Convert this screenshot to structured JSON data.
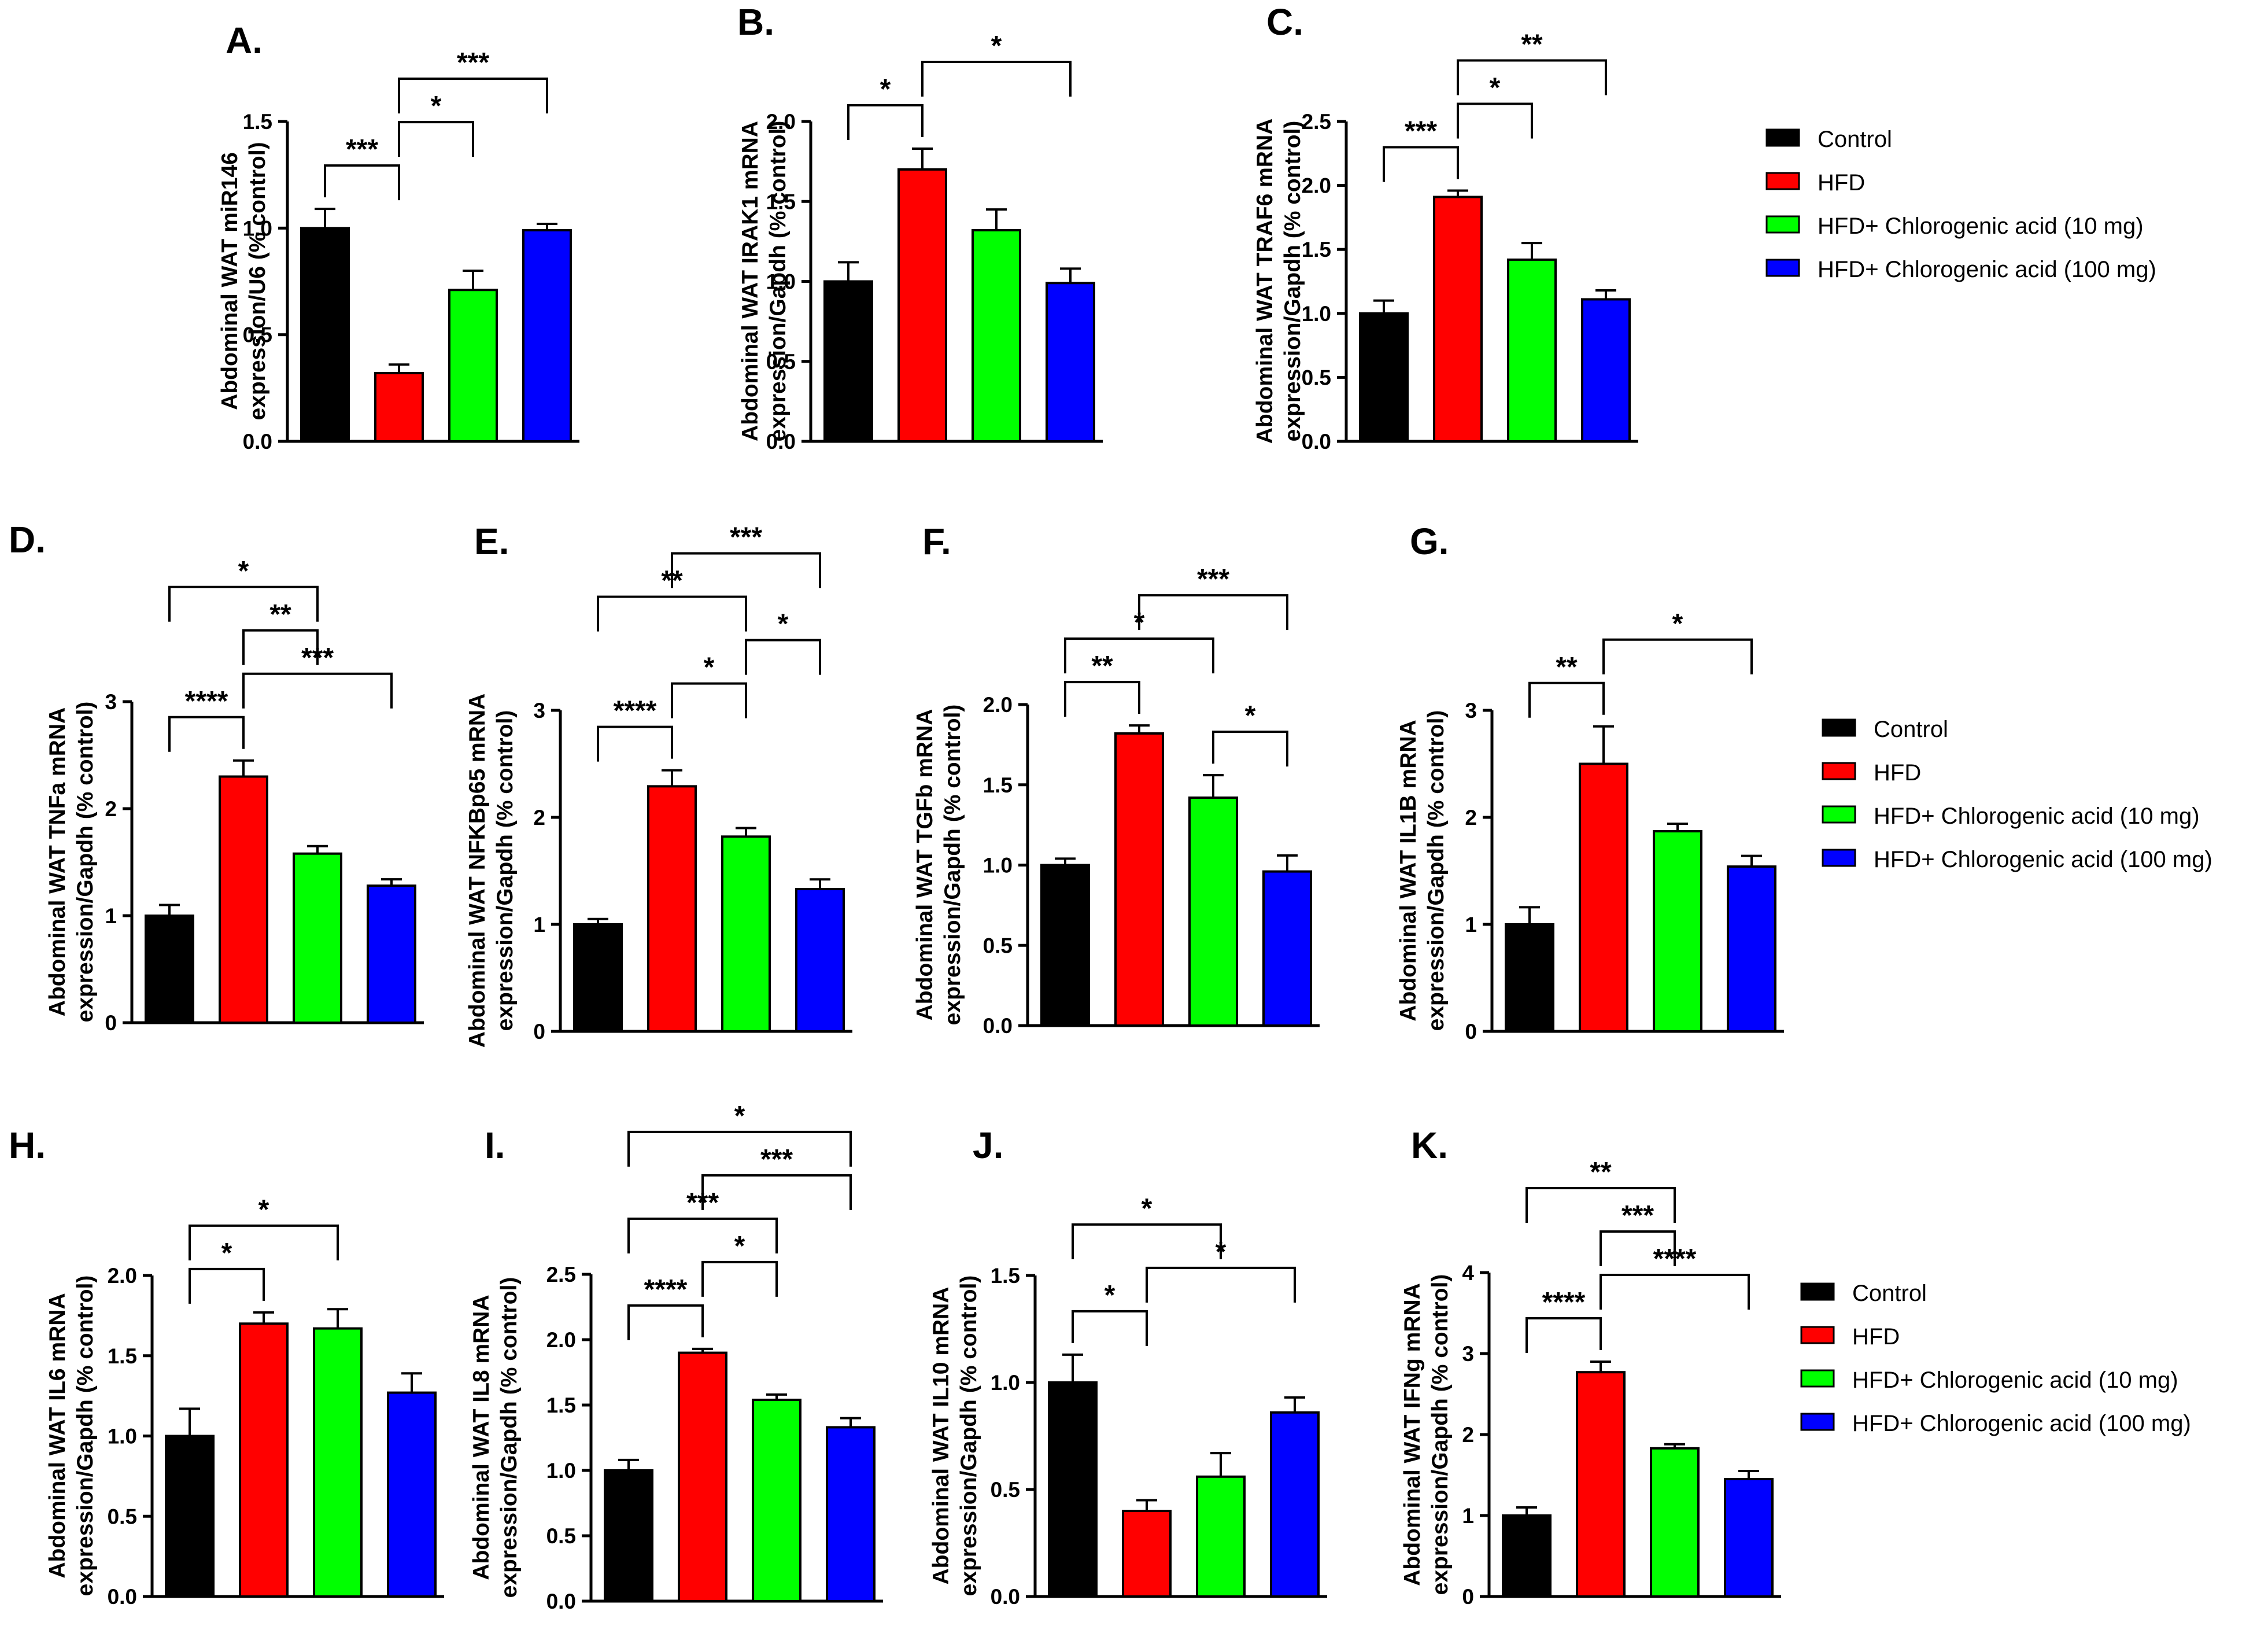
{
  "groups": [
    {
      "key": "control",
      "name": "Control",
      "color": "#000000"
    },
    {
      "key": "hfd",
      "name": "HFD",
      "color": "#ff0000"
    },
    {
      "key": "cga10",
      "name": "HFD+ Chlorogenic acid (10 mg)",
      "color": "#00ff00"
    },
    {
      "key": "cga100",
      "name": "HFD+ Chlorogenic acid (100 mg)",
      "color": "#0000ff"
    }
  ],
  "legend_copies": 3,
  "chart_data": [
    {
      "panel": "A.",
      "type": "bar",
      "title": "",
      "ylabel": [
        "Abdominal WAT miR146",
        "expression/U6 (% control)"
      ],
      "ylim": [
        0,
        1.5
      ],
      "ticks": [
        0.0,
        0.5,
        1.0,
        1.5
      ],
      "tick_labels": [
        "0.0",
        "0.5",
        "1.0",
        "1.5"
      ],
      "categories": [
        "Control",
        "HFD",
        "HFD+ Chlorogenic acid (10 mg)",
        "HFD+ Chlorogenic acid (100 mg)"
      ],
      "values": [
        1.0,
        0.32,
        0.71,
        0.99
      ],
      "errors": [
        0.09,
        0.04,
        0.09,
        0.03
      ],
      "significance": [
        {
          "from": 0,
          "to": 1,
          "label": "***"
        },
        {
          "from": 1,
          "to": 2,
          "label": "*"
        },
        {
          "from": 1,
          "to": 3,
          "label": "***"
        }
      ]
    },
    {
      "panel": "B.",
      "type": "bar",
      "title": "",
      "ylabel": [
        "Abdominal WAT IRAK1 mRNA",
        "expression/Gapdh (% control)"
      ],
      "ylim": [
        0,
        2.0
      ],
      "ticks": [
        0.0,
        0.5,
        1.0,
        1.5,
        2.0
      ],
      "tick_labels": [
        "0.0",
        "0.5",
        "1.0",
        "1.5",
        "2.0"
      ],
      "categories": [
        "Control",
        "HFD",
        "HFD+ Chlorogenic acid (10 mg)",
        "HFD+ Chlorogenic acid (100 mg)"
      ],
      "values": [
        1.0,
        1.7,
        1.32,
        0.99
      ],
      "errors": [
        0.12,
        0.13,
        0.13,
        0.09
      ],
      "significance": [
        {
          "from": 0,
          "to": 1,
          "label": "*"
        },
        {
          "from": 1,
          "to": 3,
          "label": "*"
        }
      ]
    },
    {
      "panel": "C.",
      "type": "bar",
      "title": "",
      "ylabel": [
        "Abdominal WAT TRAF6 mRNA",
        "expression/Gapdh (% control)"
      ],
      "ylim": [
        0,
        2.5
      ],
      "ticks": [
        0.0,
        0.5,
        1.0,
        1.5,
        2.0,
        2.5
      ],
      "tick_labels": [
        "0.0",
        "0.5",
        "1.0",
        "1.5",
        "2.0",
        "2.5"
      ],
      "categories": [
        "Control",
        "HFD",
        "HFD+ Chlorogenic acid (10 mg)",
        "HFD+ Chlorogenic acid (100 mg)"
      ],
      "values": [
        1.0,
        1.91,
        1.42,
        1.11
      ],
      "errors": [
        0.1,
        0.05,
        0.13,
        0.07
      ],
      "significance": [
        {
          "from": 0,
          "to": 1,
          "label": "***"
        },
        {
          "from": 1,
          "to": 2,
          "label": "*"
        },
        {
          "from": 1,
          "to": 3,
          "label": "**"
        }
      ]
    },
    {
      "panel": "D.",
      "type": "bar",
      "title": "",
      "ylabel": [
        "Abdominal WAT TNFa mRNA",
        "expression/Gapdh (% control)"
      ],
      "ylim": [
        0,
        3
      ],
      "ticks": [
        0,
        1,
        2,
        3
      ],
      "tick_labels": [
        "0",
        "1",
        "2",
        "3"
      ],
      "categories": [
        "Control",
        "HFD",
        "HFD+ Chlorogenic acid (10 mg)",
        "HFD+ Chlorogenic acid (100 mg)"
      ],
      "values": [
        1.0,
        2.3,
        1.58,
        1.28
      ],
      "errors": [
        0.1,
        0.15,
        0.07,
        0.06
      ],
      "significance": [
        {
          "from": 0,
          "to": 1,
          "label": "****"
        },
        {
          "from": 1,
          "to": 3,
          "label": "***"
        },
        {
          "from": 1,
          "to": 2,
          "label": "**"
        },
        {
          "from": 0,
          "to": 2,
          "label": "*"
        }
      ]
    },
    {
      "panel": "E.",
      "type": "bar",
      "title": "",
      "ylabel": [
        "Abdominal WAT NFKBp65 mRNA",
        "expression/Gapdh (% control)"
      ],
      "ylim": [
        0,
        3
      ],
      "ticks": [
        0,
        1,
        2,
        3
      ],
      "tick_labels": [
        "0",
        "1",
        "2",
        "3"
      ],
      "categories": [
        "Control",
        "HFD",
        "HFD+ Chlorogenic acid (10 mg)",
        "HFD+ Chlorogenic acid (100 mg)"
      ],
      "values": [
        1.0,
        2.29,
        1.82,
        1.33
      ],
      "errors": [
        0.05,
        0.15,
        0.08,
        0.09
      ],
      "significance": [
        {
          "from": 0,
          "to": 1,
          "label": "****"
        },
        {
          "from": 1,
          "to": 2,
          "label": "*"
        },
        {
          "from": 2,
          "to": 3,
          "label": "*"
        },
        {
          "from": 0,
          "to": 2,
          "label": "**"
        },
        {
          "from": 1,
          "to": 3,
          "label": "***"
        }
      ]
    },
    {
      "panel": "F.",
      "type": "bar",
      "title": "",
      "ylabel": [
        "Abdominal WAT TGFb mRNA",
        "expression/Gapdh (% control)"
      ],
      "ylim": [
        0,
        2.0
      ],
      "ticks": [
        0.0,
        0.5,
        1.0,
        1.5,
        2.0
      ],
      "tick_labels": [
        "0.0",
        "0.5",
        "1.0",
        "1.5",
        "2.0"
      ],
      "categories": [
        "Control",
        "HFD",
        "HFD+ Chlorogenic acid (10 mg)",
        "HFD+ Chlorogenic acid (100 mg)"
      ],
      "values": [
        1.0,
        1.82,
        1.42,
        0.96
      ],
      "errors": [
        0.04,
        0.05,
        0.14,
        0.1
      ],
      "significance": [
        {
          "from": 0,
          "to": 1,
          "label": "**"
        },
        {
          "from": 2,
          "to": 3,
          "label": "*"
        },
        {
          "from": 0,
          "to": 2,
          "label": "*"
        },
        {
          "from": 1,
          "to": 3,
          "label": "***"
        }
      ]
    },
    {
      "panel": "G.",
      "type": "bar",
      "title": "",
      "ylabel": [
        "Abdominal WAT IL1B mRNA",
        "expression/Gapdh (% control)"
      ],
      "ylim": [
        0,
        3
      ],
      "ticks": [
        0,
        1,
        2,
        3
      ],
      "tick_labels": [
        "0",
        "1",
        "2",
        "3"
      ],
      "categories": [
        "Control",
        "HFD",
        "HFD+ Chlorogenic acid (10 mg)",
        "HFD+ Chlorogenic acid (100 mg)"
      ],
      "values": [
        1.0,
        2.5,
        1.87,
        1.54
      ],
      "errors": [
        0.16,
        0.35,
        0.07,
        0.1
      ],
      "significance": [
        {
          "from": 0,
          "to": 1,
          "label": "**"
        },
        {
          "from": 1,
          "to": 3,
          "label": "*"
        }
      ]
    },
    {
      "panel": "H.",
      "type": "bar",
      "title": "",
      "ylabel": [
        "Abdominal WAT IL6 mRNA",
        "expression/Gapdh (% control)"
      ],
      "ylim": [
        0,
        2.0
      ],
      "ticks": [
        0.0,
        0.5,
        1.0,
        1.5,
        2.0
      ],
      "tick_labels": [
        "0.0",
        "0.5",
        "1.0",
        "1.5",
        "2.0"
      ],
      "categories": [
        "Control",
        "HFD",
        "HFD+ Chlorogenic acid (10 mg)",
        "HFD+ Chlorogenic acid (100 mg)"
      ],
      "values": [
        1.0,
        1.7,
        1.67,
        1.27
      ],
      "errors": [
        0.17,
        0.07,
        0.12,
        0.12
      ],
      "significance": [
        {
          "from": 0,
          "to": 1,
          "label": "*"
        },
        {
          "from": 0,
          "to": 2,
          "label": "*"
        }
      ]
    },
    {
      "panel": "I.",
      "type": "bar",
      "title": "",
      "ylabel": [
        "Abdominal WAT IL8 mRNA",
        "expression/Gapdh (% control)"
      ],
      "ylim": [
        0,
        2.5
      ],
      "ticks": [
        0.0,
        0.5,
        1.0,
        1.5,
        2.0,
        2.5
      ],
      "tick_labels": [
        "0.0",
        "0.5",
        "1.0",
        "1.5",
        "2.0",
        "2.5"
      ],
      "categories": [
        "Control",
        "HFD",
        "HFD+ Chlorogenic acid (10 mg)",
        "HFD+ Chlorogenic acid (100 mg)"
      ],
      "values": [
        1.0,
        1.9,
        1.54,
        1.33
      ],
      "errors": [
        0.08,
        0.03,
        0.04,
        0.07
      ],
      "significance": [
        {
          "from": 0,
          "to": 1,
          "label": "****"
        },
        {
          "from": 1,
          "to": 2,
          "label": "*"
        },
        {
          "from": 0,
          "to": 2,
          "label": "***"
        },
        {
          "from": 1,
          "to": 3,
          "label": "***"
        },
        {
          "from": 0,
          "to": 3,
          "label": "*"
        }
      ]
    },
    {
      "panel": "J.",
      "type": "bar",
      "title": "",
      "ylabel": [
        "Abdominal WAT IL10 mRNA",
        "expression/Gapdh (% control)"
      ],
      "ylim": [
        0,
        1.5
      ],
      "ticks": [
        0.0,
        0.5,
        1.0,
        1.5
      ],
      "tick_labels": [
        "0.0",
        "0.5",
        "1.0",
        "1.5"
      ],
      "categories": [
        "Control",
        "HFD",
        "HFD+ Chlorogenic acid (10 mg)",
        "HFD+ Chlorogenic acid (100 mg)"
      ],
      "values": [
        1.0,
        0.4,
        0.56,
        0.86
      ],
      "errors": [
        0.13,
        0.05,
        0.11,
        0.07
      ],
      "significance": [
        {
          "from": 0,
          "to": 1,
          "label": "*"
        },
        {
          "from": 1,
          "to": 3,
          "label": "*"
        },
        {
          "from": 0,
          "to": 2,
          "label": "*"
        }
      ]
    },
    {
      "panel": "K.",
      "type": "bar",
      "title": "",
      "ylabel": [
        "Abdominal WAT IFNg mRNA",
        "expression/Gapdh (% control)"
      ],
      "ylim": [
        0,
        4
      ],
      "ticks": [
        0,
        1,
        2,
        3,
        4
      ],
      "tick_labels": [
        "0",
        "1",
        "2",
        "3",
        "4"
      ],
      "categories": [
        "Control",
        "HFD",
        "HFD+ Chlorogenic acid (10 mg)",
        "HFD+ Chlorogenic acid (100 mg)"
      ],
      "values": [
        1.0,
        2.77,
        1.83,
        1.45
      ],
      "errors": [
        0.1,
        0.13,
        0.05,
        0.1
      ],
      "significance": [
        {
          "from": 0,
          "to": 1,
          "label": "****"
        },
        {
          "from": 1,
          "to": 3,
          "label": "****"
        },
        {
          "from": 1,
          "to": 2,
          "label": "***"
        },
        {
          "from": 0,
          "to": 2,
          "label": "**"
        }
      ]
    }
  ]
}
